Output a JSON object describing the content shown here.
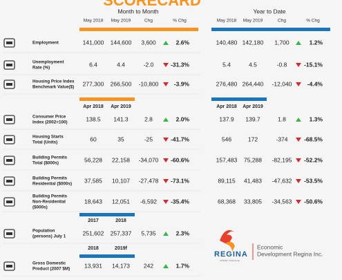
{
  "title": "SCORECARD",
  "headers": {
    "month_to_month": "Month to Month",
    "year_to_date": "Year to Date"
  },
  "column_headers": {
    "mtm": [
      "May 2018",
      "May 2019",
      "Chg",
      "% Chg"
    ],
    "ytd": [
      "May 2018",
      "May 2019",
      "Chg",
      "% Chg"
    ]
  },
  "blocks": [
    {
      "rows": [
        {
          "label": [
            "Employment"
          ],
          "mtm": [
            "141,000",
            "144,600",
            "3,600",
            "2.6%"
          ],
          "mtm_trend": "up",
          "ytd": [
            "140,480",
            "142,180",
            "1,700",
            "1.2%"
          ],
          "ytd_trend": "up"
        },
        {
          "label": [
            "Unemployment",
            "Rate (%)"
          ],
          "mtm": [
            "6.4",
            "4.4",
            "-2.0",
            "-31.3%"
          ],
          "mtm_trend": "down",
          "ytd": [
            "5.4",
            "4.5",
            "-0.8",
            "-15.1%"
          ],
          "ytd_trend": "down"
        },
        {
          "label": [
            "Housing Price Index",
            "Benchmark Value($)"
          ],
          "mtm": [
            "277,300",
            "266,500",
            "-10,800",
            "-3.9%"
          ],
          "mtm_trend": "down",
          "ytd": [
            "276,480",
            "264,440",
            "-12,040",
            "-4.4%"
          ],
          "ytd_trend": "down"
        }
      ]
    },
    {
      "periods": {
        "mtm": [
          "Apr 2018",
          "Apr 2019"
        ],
        "ytd": [
          "Apr 2018",
          "Apr 2019"
        ]
      },
      "rows": [
        {
          "label": [
            "Consumer Price",
            "Index (2002=100)"
          ],
          "mtm": [
            "138.5",
            "141.3",
            "2.8",
            "2.0%"
          ],
          "mtm_trend": "up",
          "ytd": [
            "137.9",
            "139.7",
            "1.8",
            "1.3%"
          ],
          "ytd_trend": "up"
        },
        {
          "label": [
            "Housing Starts",
            "Total (Units)"
          ],
          "mtm": [
            "60",
            "35",
            "-25",
            "-41.7%"
          ],
          "mtm_trend": "down",
          "ytd": [
            "546",
            "172",
            "-374",
            "-68.5%"
          ],
          "ytd_trend": "down"
        },
        {
          "label": [
            "Building Permits",
            "Total ($000s)"
          ],
          "mtm": [
            "56,228",
            "22,158",
            "-34,070",
            "-60.6%"
          ],
          "mtm_trend": "down",
          "ytd": [
            "157,483",
            "75,288",
            "-82,195",
            "-52.2%"
          ],
          "ytd_trend": "down"
        },
        {
          "label": [
            "Building Permits",
            "Residential ($000s)"
          ],
          "mtm": [
            "37,585",
            "10,107",
            "-27,478",
            "-73.1%"
          ],
          "mtm_trend": "down",
          "ytd": [
            "89,115",
            "41,483",
            "-47,632",
            "-53.5%"
          ],
          "ytd_trend": "down"
        },
        {
          "label": [
            "Building Permits",
            "Non-Residential",
            "($000s)"
          ],
          "mtm": [
            "18,643",
            "12,051",
            "-6,592",
            "-35.4%"
          ],
          "mtm_trend": "down",
          "ytd": [
            "68,368",
            "33,805",
            "-34,563",
            "-50.6%"
          ],
          "ytd_trend": "down"
        }
      ]
    },
    {
      "periods": {
        "mtm": [
          "2017",
          "2018"
        ]
      },
      "rows": [
        {
          "label": [
            "Population",
            "(persons) July 1"
          ],
          "mtm": [
            "251,602",
            "257,337",
            "5,735",
            "2.3%"
          ],
          "mtm_trend": "up"
        }
      ]
    },
    {
      "periods": {
        "mtm": [
          "2018",
          "2019f"
        ]
      },
      "rows": [
        {
          "label": [
            "Gross Domestic",
            "Product (2007 $M)"
          ],
          "mtm": [
            "13,931",
            "14,173",
            "242",
            "1.7%"
          ],
          "mtm_trend": "up"
        }
      ]
    }
  ],
  "logo": {
    "name": "REGINA",
    "tagline": "Infinite Horizons",
    "org": [
      "Economic",
      "Development Regina Inc."
    ]
  }
}
